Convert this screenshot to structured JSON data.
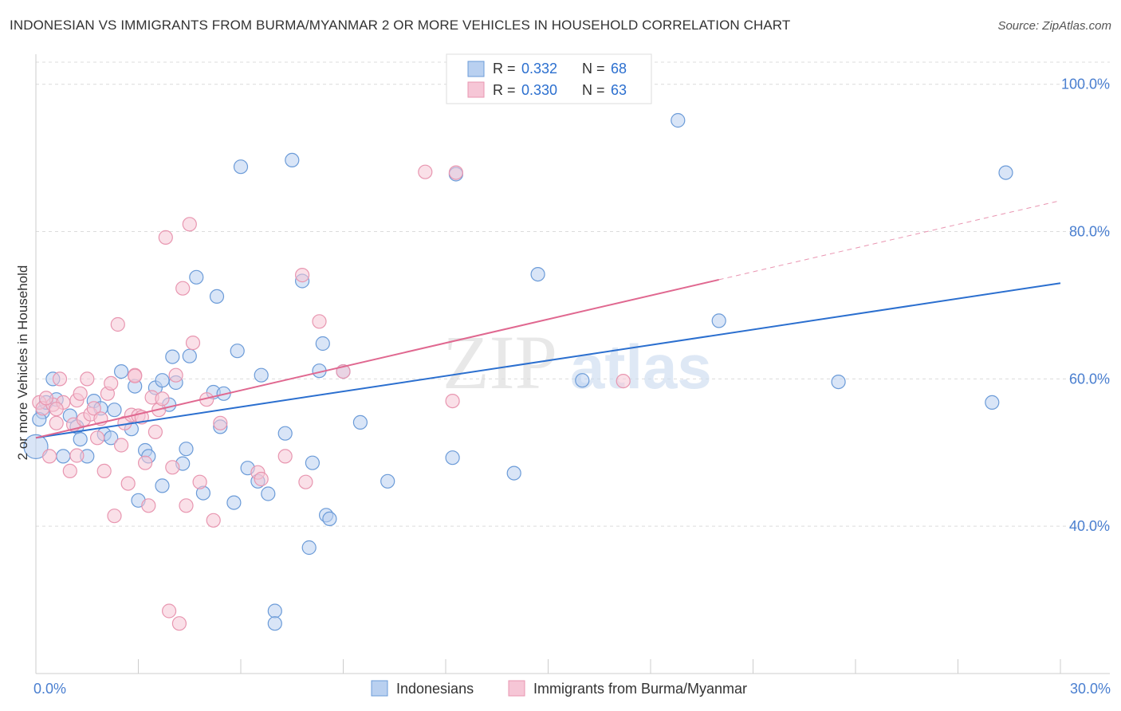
{
  "title": "INDONESIAN VS IMMIGRANTS FROM BURMA/MYANMAR 2 OR MORE VEHICLES IN HOUSEHOLD CORRELATION CHART",
  "source": "Source: ZipAtlas.com",
  "watermark": {
    "zip": "ZIP",
    "atlas": "atlas"
  },
  "legend": {
    "r_label": "R =",
    "n_label": "N =",
    "rows": [
      {
        "r": "0.332",
        "n": "68"
      },
      {
        "r": "0.330",
        "n": "63"
      }
    ]
  },
  "chart_data": {
    "type": "scatter",
    "title": "INDONESIAN VS IMMIGRANTS FROM BURMA/MYANMAR 2 OR MORE VEHICLES IN HOUSEHOLD CORRELATION CHART",
    "xlabel": "",
    "ylabel": "2 or more Vehicles in Household",
    "xlim": [
      0,
      30
    ],
    "ylim": [
      20,
      103
    ],
    "x_tick_labels": [
      "0.0%",
      "30.0%"
    ],
    "y_ticks": [
      40,
      60,
      80,
      100
    ],
    "y_tick_labels": [
      "40.0%",
      "60.0%",
      "80.0%",
      "100.0%"
    ],
    "grid": true,
    "series": [
      {
        "name": "Indonesians",
        "color": "#6b9bd8",
        "fill": "#b9d0f0",
        "line_color": "#2b6fcf",
        "trend": {
          "x": [
            0,
            30
          ],
          "y": [
            52.0,
            73.0
          ],
          "dashed_from": null
        },
        "points": [
          [
            0.0,
            50.8
          ],
          [
            0.2,
            55.5
          ],
          [
            0.3,
            56.8
          ],
          [
            0.5,
            60.0
          ],
          [
            0.6,
            57.2
          ],
          [
            0.8,
            49.5
          ],
          [
            1.0,
            55.0
          ],
          [
            1.2,
            53.5
          ],
          [
            1.3,
            51.8
          ],
          [
            1.5,
            49.5
          ],
          [
            1.7,
            57.0
          ],
          [
            1.9,
            56.0
          ],
          [
            2.0,
            52.5
          ],
          [
            2.2,
            52.0
          ],
          [
            2.5,
            61.0
          ],
          [
            2.8,
            53.2
          ],
          [
            2.9,
            59.0
          ],
          [
            3.0,
            43.5
          ],
          [
            3.2,
            50.3
          ],
          [
            3.3,
            49.5
          ],
          [
            3.5,
            58.8
          ],
          [
            3.7,
            59.8
          ],
          [
            3.7,
            45.5
          ],
          [
            3.9,
            56.5
          ],
          [
            4.0,
            63.0
          ],
          [
            4.1,
            59.5
          ],
          [
            4.3,
            48.5
          ],
          [
            4.4,
            50.5
          ],
          [
            4.5,
            63.1
          ],
          [
            4.7,
            73.8
          ],
          [
            4.9,
            44.5
          ],
          [
            5.2,
            58.2
          ],
          [
            5.3,
            71.2
          ],
          [
            5.4,
            53.5
          ],
          [
            5.5,
            58.0
          ],
          [
            5.8,
            43.2
          ],
          [
            5.9,
            63.8
          ],
          [
            6.0,
            88.8
          ],
          [
            6.2,
            47.9
          ],
          [
            6.5,
            46.1
          ],
          [
            6.6,
            60.5
          ],
          [
            6.8,
            44.4
          ],
          [
            7.0,
            28.5
          ],
          [
            7.0,
            26.8
          ],
          [
            7.3,
            52.6
          ],
          [
            7.5,
            89.7
          ],
          [
            7.8,
            73.3
          ],
          [
            8.0,
            37.1
          ],
          [
            8.3,
            61.1
          ],
          [
            8.4,
            64.8
          ],
          [
            8.5,
            41.5
          ],
          [
            8.6,
            41.0
          ],
          [
            9.0,
            61.0
          ],
          [
            9.5,
            54.1
          ],
          [
            10.3,
            46.1
          ],
          [
            12.2,
            49.3
          ],
          [
            12.3,
            87.8
          ],
          [
            14.0,
            47.2
          ],
          [
            14.7,
            74.2
          ],
          [
            16.0,
            59.8
          ],
          [
            18.8,
            95.1
          ],
          [
            20.0,
            67.9
          ],
          [
            23.5,
            59.6
          ],
          [
            28.0,
            56.8
          ],
          [
            28.4,
            88.0
          ],
          [
            0.1,
            54.5
          ],
          [
            2.3,
            55.8
          ],
          [
            8.1,
            48.6
          ]
        ]
      },
      {
        "name": "Immigrants from Burma/Myanmar",
        "color": "#e896b0",
        "fill": "#f6c6d6",
        "line_color": "#e06890",
        "trend": {
          "x": [
            0,
            30
          ],
          "y": [
            52.0,
            84.2
          ],
          "solid_until": 20.0
        },
        "points": [
          [
            0.1,
            56.8
          ],
          [
            0.2,
            56.0
          ],
          [
            0.4,
            49.5
          ],
          [
            0.5,
            56.5
          ],
          [
            0.6,
            54.0
          ],
          [
            0.7,
            60.0
          ],
          [
            0.8,
            56.8
          ],
          [
            1.0,
            47.5
          ],
          [
            1.1,
            53.8
          ],
          [
            1.2,
            57.1
          ],
          [
            1.3,
            58.0
          ],
          [
            1.4,
            54.5
          ],
          [
            1.5,
            60.0
          ],
          [
            1.6,
            55.2
          ],
          [
            1.7,
            56.0
          ],
          [
            1.8,
            52.0
          ],
          [
            1.9,
            54.6
          ],
          [
            2.0,
            47.5
          ],
          [
            2.1,
            58.0
          ],
          [
            2.2,
            59.4
          ],
          [
            2.3,
            41.4
          ],
          [
            2.4,
            67.4
          ],
          [
            2.5,
            51.0
          ],
          [
            2.6,
            54.0
          ],
          [
            2.7,
            45.8
          ],
          [
            2.8,
            55.1
          ],
          [
            2.9,
            60.5
          ],
          [
            3.0,
            55.0
          ],
          [
            3.2,
            48.6
          ],
          [
            3.3,
            42.8
          ],
          [
            3.4,
            57.5
          ],
          [
            3.5,
            52.8
          ],
          [
            3.6,
            55.8
          ],
          [
            3.7,
            57.3
          ],
          [
            3.8,
            79.2
          ],
          [
            3.9,
            28.5
          ],
          [
            4.0,
            48.0
          ],
          [
            4.1,
            60.5
          ],
          [
            4.2,
            26.8
          ],
          [
            4.3,
            72.3
          ],
          [
            4.4,
            42.8
          ],
          [
            4.5,
            81.0
          ],
          [
            4.6,
            64.9
          ],
          [
            4.8,
            46.0
          ],
          [
            5.0,
            57.2
          ],
          [
            5.2,
            40.8
          ],
          [
            5.4,
            54.0
          ],
          [
            6.5,
            47.3
          ],
          [
            7.3,
            49.5
          ],
          [
            7.8,
            74.1
          ],
          [
            7.9,
            46.0
          ],
          [
            8.3,
            67.8
          ],
          [
            9.0,
            61.0
          ],
          [
            11.4,
            88.1
          ],
          [
            12.3,
            88.0
          ],
          [
            12.2,
            57.0
          ],
          [
            17.2,
            59.7
          ],
          [
            0.3,
            57.4
          ],
          [
            1.2,
            49.6
          ],
          [
            3.1,
            54.8
          ],
          [
            6.6,
            46.4
          ],
          [
            2.9,
            60.4
          ],
          [
            0.6,
            55.9
          ]
        ]
      }
    ]
  },
  "bottom_legend": {
    "items": [
      {
        "label": "Indonesians"
      },
      {
        "label": "Immigrants from Burma/Myanmar"
      }
    ]
  }
}
